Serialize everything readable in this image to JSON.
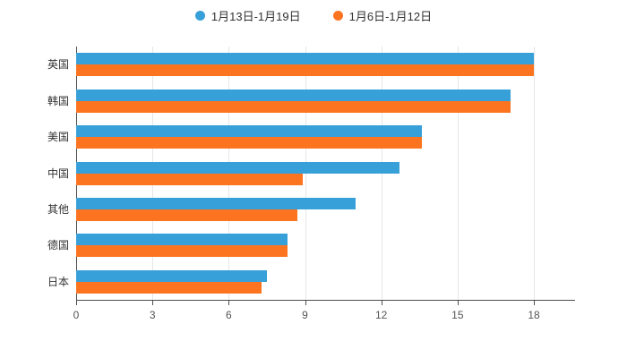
{
  "chart_data": {
    "type": "bar",
    "orientation": "horizontal",
    "title": "",
    "xlabel": "",
    "ylabel": "",
    "categories": [
      "英国",
      "韩国",
      "美国",
      "中国",
      "其他",
      "德国",
      "日本"
    ],
    "series": [
      {
        "name": "1月13日-1月19日",
        "color": "#38a0d9",
        "values": [
          18.0,
          17.1,
          13.6,
          12.7,
          11.0,
          8.3,
          7.5
        ]
      },
      {
        "name": "1月6日-1月12日",
        "color": "#fc7420",
        "values": [
          18.0,
          17.1,
          13.6,
          8.9,
          8.7,
          8.3,
          7.3
        ]
      }
    ],
    "xlim": [
      0,
      18
    ],
    "xticks": [
      0,
      3,
      6,
      9,
      12,
      15,
      18
    ],
    "grid": true,
    "legend_position": "top",
    "background_color": "#ffffff",
    "axis_color": "#4d4d4d",
    "gridline_color": "#e6e6e6"
  }
}
